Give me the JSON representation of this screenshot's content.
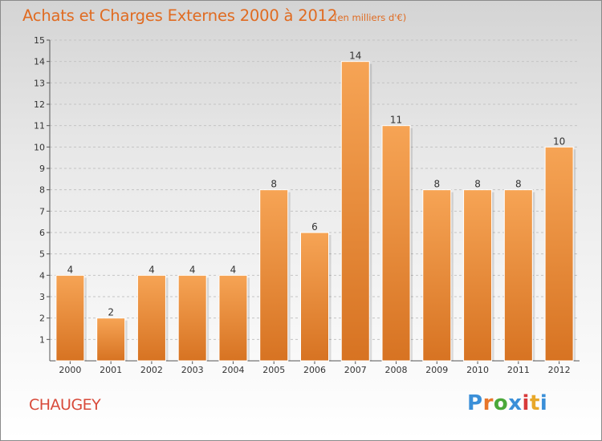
{
  "title": "Achats et Charges Externes 2000 à 2012",
  "subtitle": "(en milliers d'€)",
  "commune": "CHAUGEY",
  "logo": {
    "text": "Proxiti",
    "colors": [
      "#3a8fd8",
      "#e8762a",
      "#4aa83a",
      "#3a8fd8",
      "#d83a3a",
      "#e8a82a",
      "#3a8fd8"
    ]
  },
  "colors": {
    "accent": "#e06b21",
    "commune": "#d84a3a",
    "bar_light": "#f6a455",
    "bar_dark": "#d77322"
  },
  "chart_data": {
    "type": "bar",
    "categories": [
      "2000",
      "2001",
      "2002",
      "2003",
      "2004",
      "2005",
      "2006",
      "2007",
      "2008",
      "2009",
      "2010",
      "2011",
      "2012"
    ],
    "values": [
      4,
      2,
      4,
      4,
      4,
      8,
      6,
      14,
      11,
      8,
      8,
      8,
      10
    ],
    "title": "Achats et Charges Externes 2000 à 2012",
    "subtitle": "(en milliers d'€)",
    "xlabel": "",
    "ylabel": "",
    "ylim": [
      0,
      15
    ],
    "yticks": [
      1,
      2,
      3,
      4,
      5,
      6,
      7,
      8,
      9,
      10,
      11,
      12,
      13,
      14,
      15
    ],
    "grid": "horizontal",
    "legend": "none"
  }
}
